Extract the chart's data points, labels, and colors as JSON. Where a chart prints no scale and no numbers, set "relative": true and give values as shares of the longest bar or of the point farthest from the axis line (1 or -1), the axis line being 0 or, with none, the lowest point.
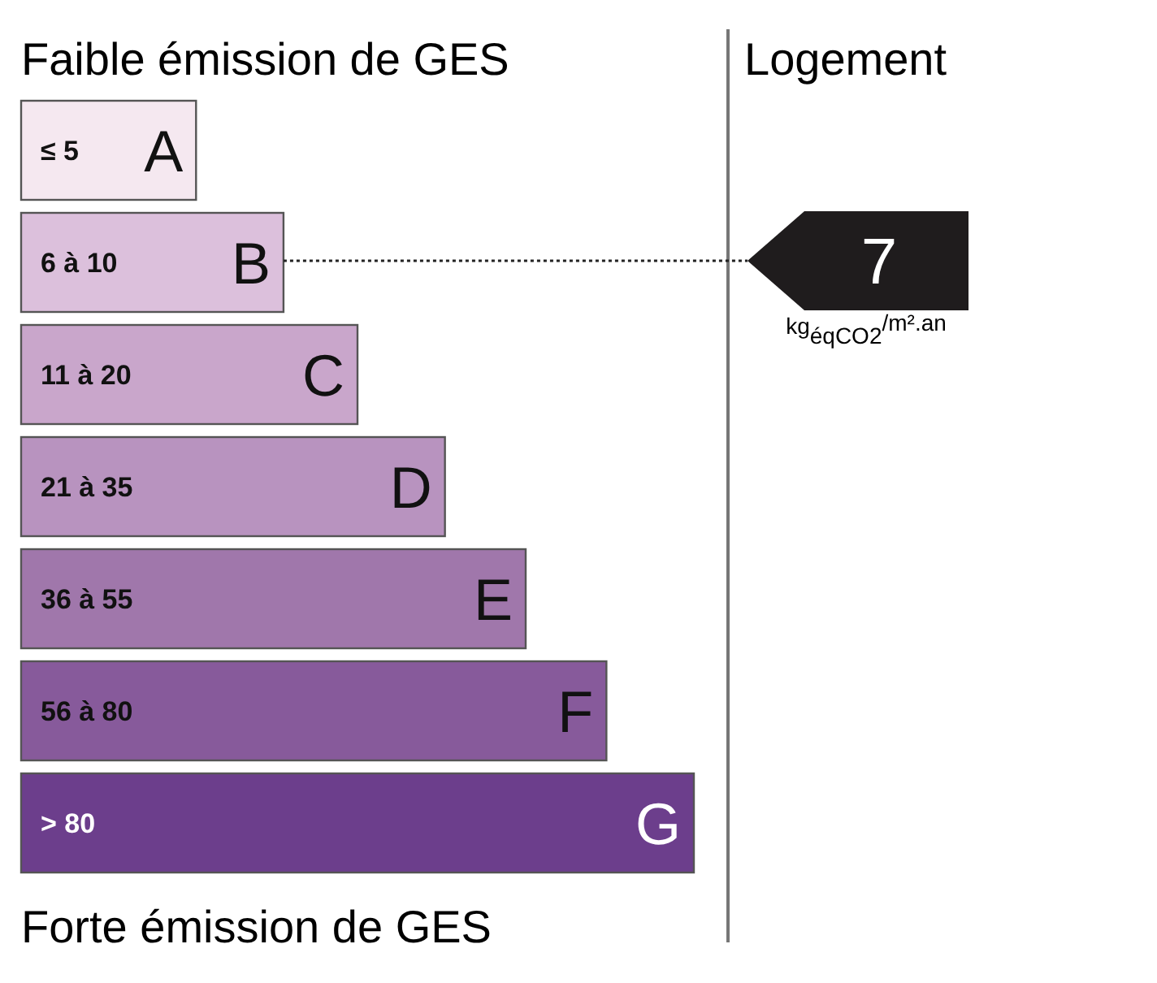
{
  "chart_data": {
    "type": "bar",
    "orientation": "horizontal",
    "relative": true,
    "title": "Faible émission de GES",
    "xlabel": "Forte émission de GES",
    "categories": [
      "A",
      "B",
      "C",
      "D",
      "E",
      "F",
      "G"
    ],
    "values": [
      0.26,
      0.39,
      0.5,
      0.63,
      0.75,
      0.87,
      1
    ],
    "colors": [
      "#f5e8f0",
      "#dcc0dc",
      "#c9a6cb",
      "#b893bf",
      "#a077ab",
      "#875a9b",
      "#6c3e8c"
    ],
    "annotations": [
      "≤ 5",
      "6 à 10",
      "11 à 20",
      "21 à 35",
      "36 à 55",
      "56 à 80",
      "> 80",
      "Logement",
      "kg$_{éqCO2}$$^{/m².an}$"
    ],
    "ref_lines": [
      {
        "axis": "y",
        "value": "B",
        "label": "7",
        "line_style": "dotted",
        "color": "#222222"
      }
    ]
  }
}
